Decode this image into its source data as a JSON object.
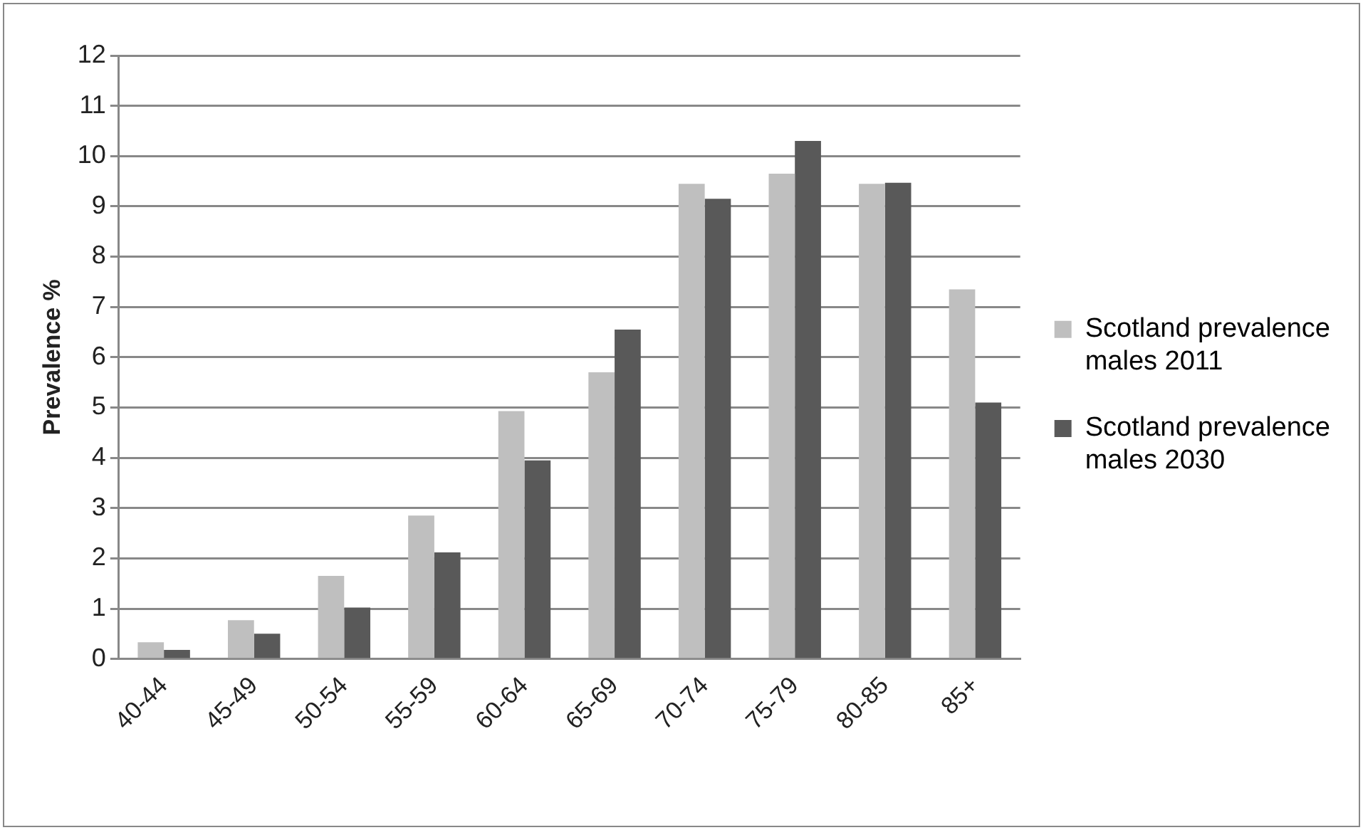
{
  "chart_data": {
    "type": "bar",
    "ylabel": "Prevalence %",
    "categories": [
      "40-44",
      "45-49",
      "50-54",
      "55-59",
      "60-64",
      "65-69",
      "70-74",
      "75-79",
      "80-85",
      "85+"
    ],
    "series": [
      {
        "name": "Scotland prevalence males 2011",
        "color": "#bfbfbf",
        "values": [
          0.33,
          0.77,
          1.65,
          2.85,
          4.93,
          5.7,
          9.45,
          9.65,
          9.45,
          7.35
        ]
      },
      {
        "name": "Scotland prevalence males 2030",
        "color": "#595959",
        "values": [
          0.18,
          0.5,
          1.02,
          2.12,
          3.95,
          6.55,
          9.15,
          10.3,
          9.47,
          5.1
        ]
      }
    ],
    "ylim": [
      0,
      12
    ],
    "yticks": [
      0,
      1,
      2,
      3,
      4,
      5,
      6,
      7,
      8,
      9,
      10,
      11,
      12
    ],
    "grid": "y",
    "legend": "right"
  }
}
